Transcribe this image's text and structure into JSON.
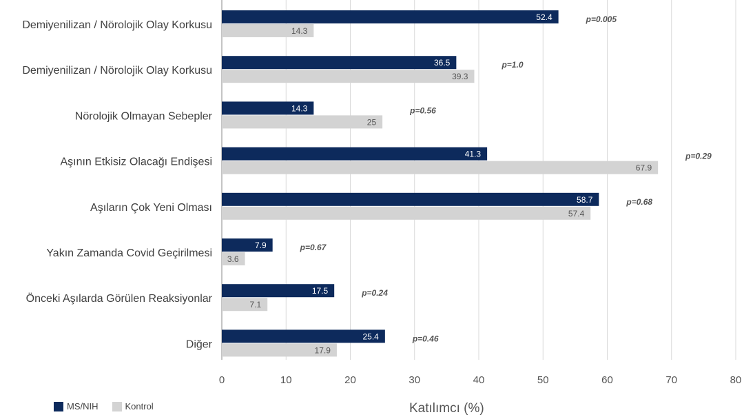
{
  "chart_data": {
    "type": "bar",
    "orientation": "horizontal",
    "categories": [
      "Demiyenilizan / Nörolojik Olay Korkusu",
      "Demiyenilizan / Nörolojik Olay Korkusu",
      "Nörolojik Olmayan Sebepler",
      "Aşının Etkisiz Olacağı Endişesi",
      "Aşıların Çok Yeni Olması",
      "Yakın Zamanda Covid Geçirilmesi",
      "Önceki Aşılarda Görülen Reaksiyonlar",
      "Diğer"
    ],
    "series": [
      {
        "name": "MS/NIH",
        "color": "#0d2a5c",
        "values": [
          52.4,
          36.5,
          14.3,
          41.3,
          58.7,
          7.9,
          17.5,
          25.4
        ]
      },
      {
        "name": "Kontrol",
        "color": "#d3d3d3",
        "values": [
          14.3,
          39.3,
          25,
          67.9,
          57.4,
          3.6,
          7.1,
          17.9
        ]
      }
    ],
    "bar_labels": [
      [
        "52.4",
        "36.5",
        "14.3",
        "41.3",
        "58.7",
        "7.9",
        "17.5",
        "25.4"
      ],
      [
        "14.3",
        "39.3",
        "25",
        "67.9",
        "57.4",
        "3.6",
        "7.1",
        "17.9"
      ]
    ],
    "p_values": [
      "p=0.005",
      "p=1.0",
      "p=0.56",
      "p=0.29",
      "p=0.68",
      "p=0.67",
      "p=0.24",
      "p=0.46"
    ],
    "xlabel": "Katılımcı (%)",
    "xlim": [
      0,
      80
    ],
    "xticks": [
      "0",
      "10",
      "20",
      "30",
      "40",
      "50",
      "60",
      "70",
      "80"
    ],
    "grid": "vertical",
    "legend_position": "bottom-left"
  }
}
